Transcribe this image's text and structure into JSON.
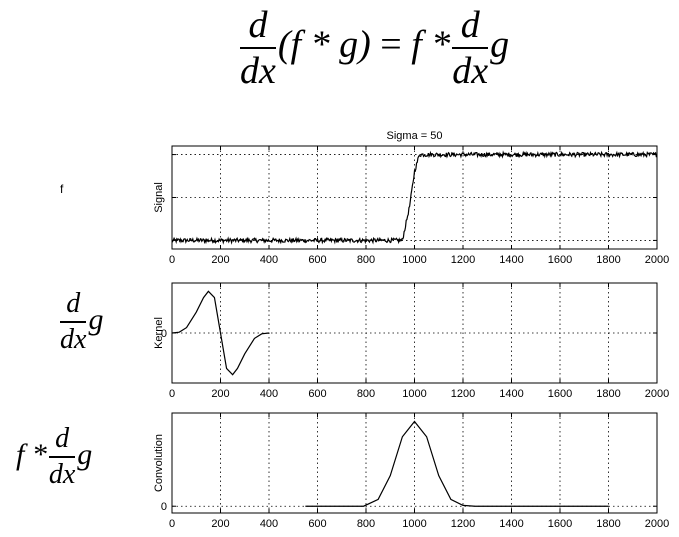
{
  "equation": {
    "d": "d",
    "dx": "dx",
    "lhs_expr": "(f * g)",
    "equals": "=",
    "rhs_prefix": "f *",
    "g": "g"
  },
  "side_labels": {
    "f": "f",
    "d": "d",
    "dx": "dx",
    "g": "g",
    "conv_prefix": "f *"
  },
  "chart_data": [
    {
      "type": "line",
      "title": "Sigma = 50",
      "ylabel": "Signal",
      "xlim": [
        0,
        2000
      ],
      "xticks": [
        0,
        200,
        400,
        600,
        800,
        1000,
        1200,
        1400,
        1600,
        1800,
        2000
      ],
      "ylim": [
        -0.1,
        1.1
      ],
      "yticks": [
        0,
        0.5,
        1
      ],
      "ytick_labels": [
        "",
        "",
        ""
      ],
      "grid": true,
      "series": [
        {
          "x": [
            0,
            950,
            980,
            1000,
            1020,
            2000
          ],
          "y": [
            0,
            0,
            0.4,
            0.8,
            1,
            1
          ],
          "noise": 0.025
        }
      ]
    },
    {
      "type": "line",
      "title": "",
      "ylabel": "Kernel",
      "xlim": [
        0,
        2000
      ],
      "xticks": [
        0,
        200,
        400,
        600,
        800,
        1000,
        1200,
        1400,
        1600,
        1800,
        2000
      ],
      "ylim": [
        -1.2,
        1.2
      ],
      "yticks": [
        0
      ],
      "ytick_labels": [
        "0"
      ],
      "grid": true,
      "series": [
        {
          "x": [
            0,
            30,
            60,
            100,
            130,
            150,
            175,
            200,
            225,
            250,
            270,
            300,
            340,
            370,
            400
          ],
          "y": [
            0,
            0.02,
            0.13,
            0.5,
            0.85,
            1.0,
            0.85,
            0,
            -0.85,
            -1.0,
            -0.85,
            -0.5,
            -0.13,
            -0.02,
            0
          ]
        }
      ]
    },
    {
      "type": "line",
      "title": "",
      "ylabel": "Convolution",
      "xlim": [
        0,
        2000
      ],
      "xticks": [
        0,
        200,
        400,
        600,
        800,
        1000,
        1200,
        1400,
        1600,
        1800,
        2000
      ],
      "ylim": [
        -0.08,
        1.1
      ],
      "yticks": [
        0
      ],
      "ytick_labels": [
        "0"
      ],
      "grid": true,
      "series": [
        {
          "x": [
            550,
            650,
            790,
            850,
            900,
            950,
            1000,
            1050,
            1100,
            1150,
            1200,
            1250,
            1450,
            1550,
            1700,
            1800
          ],
          "y": [
            0,
            0,
            0,
            0.08,
            0.36,
            0.82,
            1.0,
            0.82,
            0.36,
            0.08,
            0.01,
            0,
            0,
            0,
            0,
            0
          ]
        }
      ]
    }
  ]
}
